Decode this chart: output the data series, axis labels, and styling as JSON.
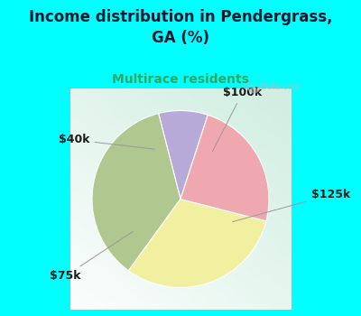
{
  "title": "Income distribution in Pendergrass,\nGA (%)",
  "subtitle": "Multirace residents",
  "title_color": "#1a1a2e",
  "subtitle_color": "#2aaa66",
  "background_color": "#00ffff",
  "chart_bg_top_left": "#c8eedd",
  "chart_bg_bottom_right": "#e8f8f8",
  "slices": [
    {
      "label": "$100k",
      "value": 9,
      "color": "#b8aad8"
    },
    {
      "label": "$125k",
      "value": 36,
      "color": "#b0c890"
    },
    {
      "label": "$75k",
      "value": 31,
      "color": "#f0f0a0"
    },
    {
      "label": "$40k",
      "value": 24,
      "color": "#f0a8b0"
    }
  ],
  "startangle": 72,
  "figsize": [
    4.0,
    3.5
  ],
  "dpi": 100,
  "label_fontsize": 9,
  "label_color": "#1a1a1a"
}
